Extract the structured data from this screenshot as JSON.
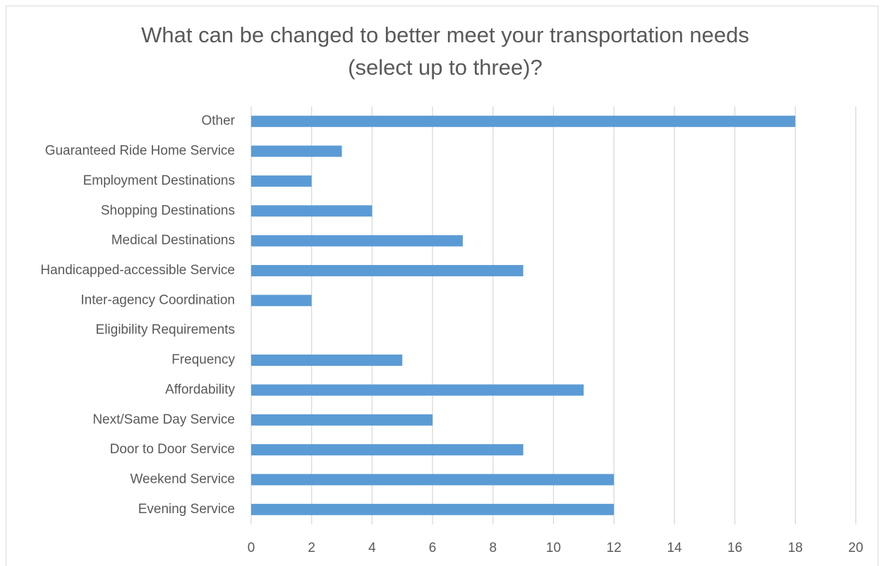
{
  "chart_data": {
    "type": "hbar",
    "title": [
      "What can be changed to better meet your transportation needs",
      "(select up to three)?"
    ],
    "categories": [
      "Other",
      "Guaranteed Ride Home Service",
      "Employment Destinations",
      "Shopping Destinations",
      "Medical Destinations",
      "Handicapped-accessible Service",
      "Inter-agency Coordination",
      "Eligibility Requirements",
      "Frequency",
      "Affordability",
      "Next/Same Day Service",
      "Door to Door Service",
      "Weekend Service",
      "Evening Service"
    ],
    "values": [
      18,
      3,
      2,
      4,
      7,
      9,
      2,
      0,
      5,
      11,
      6,
      9,
      12,
      12
    ],
    "color": "#5b9bd5",
    "xlim": [
      0,
      20
    ],
    "xticks": [
      0,
      2,
      4,
      6,
      8,
      10,
      12,
      14,
      16,
      18,
      20
    ],
    "grid": true
  }
}
